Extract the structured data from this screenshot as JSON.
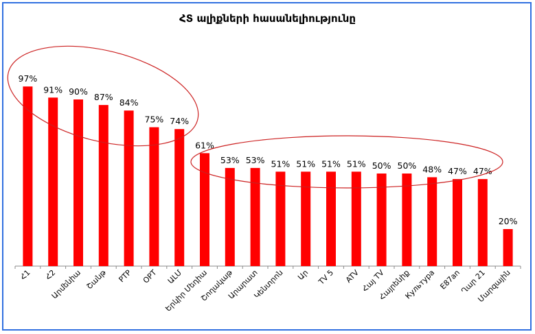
{
  "chart_data": {
    "type": "bar",
    "title": "ՀՏ ալիքների հասանելիությունը",
    "categories": [
      "Հ1",
      "Հ2",
      "Արմենիա",
      "Շանթ",
      "РТР",
      "ОРТ",
      "ԱԼՄ",
      "Երկիր Մեդիա",
      "Շողակաթ",
      "Արարատ",
      "Կենտրոն",
      "Ար",
      "TV 5",
      "ATV",
      "Հայ TV",
      "Հայրենիք",
      "Культура",
      "Е87an",
      "Ղար 21",
      "Մարզային"
    ],
    "values": [
      97,
      91,
      90,
      87,
      84,
      75,
      74,
      61,
      53,
      53,
      51,
      51,
      51,
      51,
      50,
      50,
      48,
      47,
      47,
      20
    ],
    "value_labels": [
      "97%",
      "91%",
      "90%",
      "87%",
      "84%",
      "75%",
      "74%",
      "61%",
      "53%",
      "53%",
      "51%",
      "51%",
      "51%",
      "51%",
      "50%",
      "50%",
      "48%",
      "47%",
      "47%",
      "20%"
    ],
    "ylim": [
      0,
      100
    ],
    "xlabel": "",
    "ylabel": "",
    "grid": false,
    "bar_color": "#ff0000",
    "annotation_color": "#cc2020"
  }
}
